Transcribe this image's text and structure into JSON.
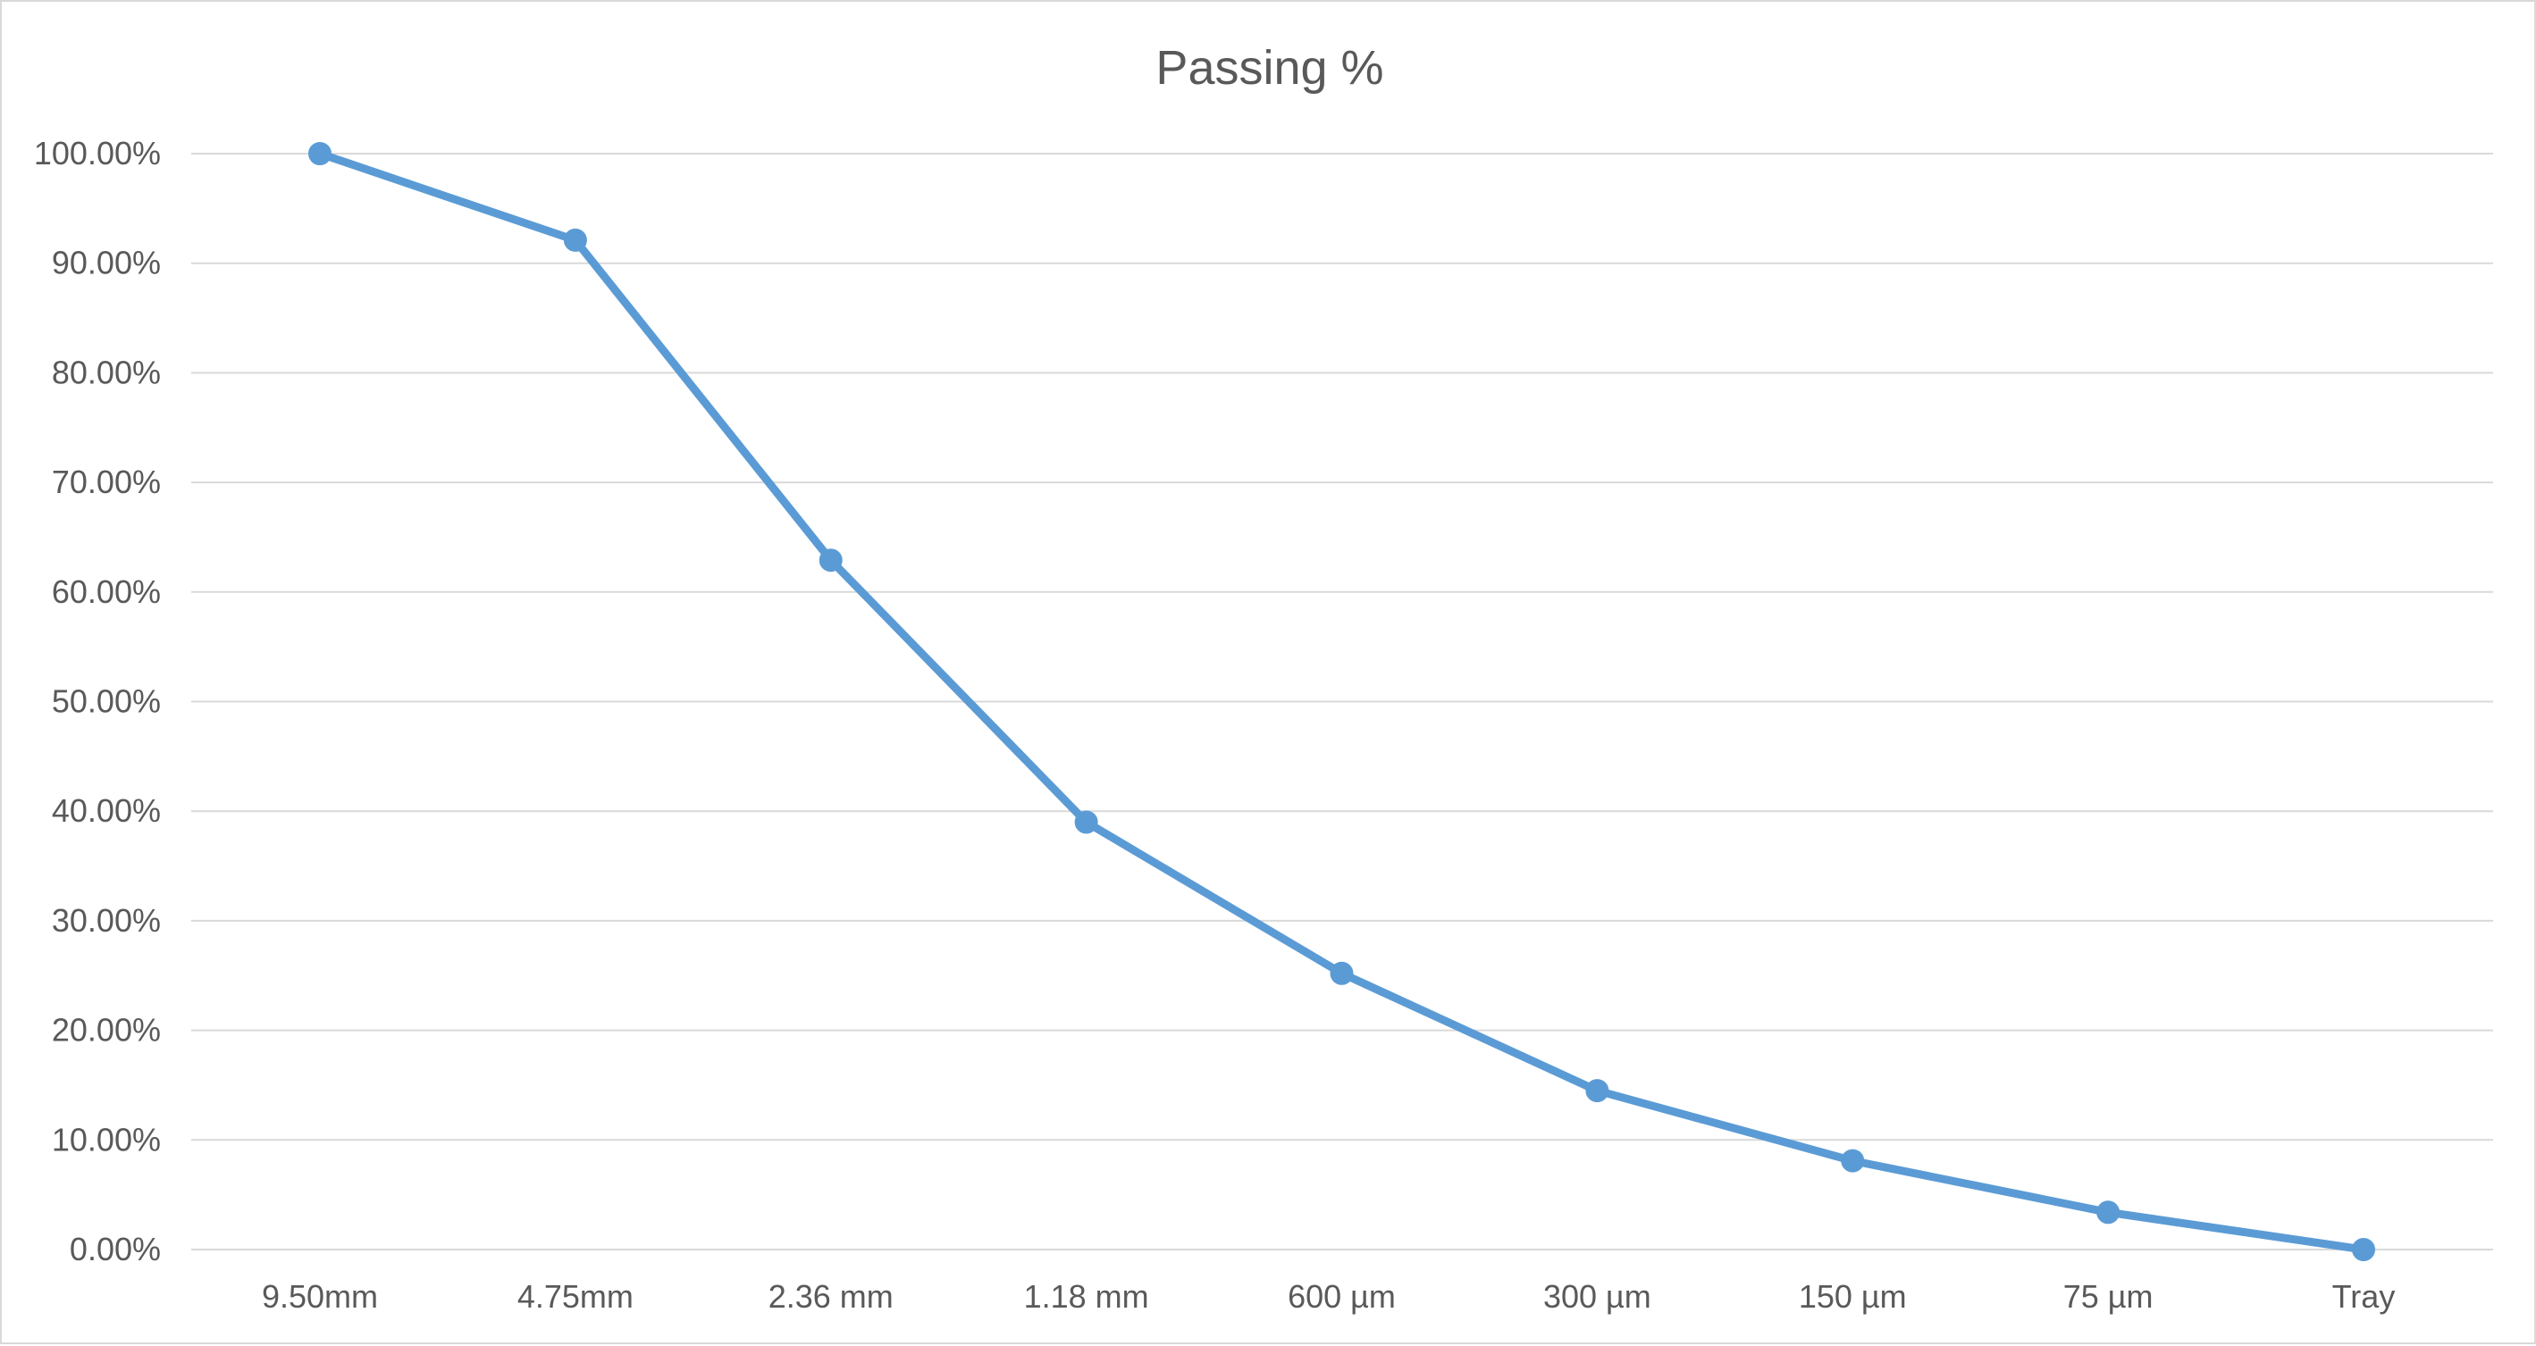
{
  "chart_data": {
    "type": "line",
    "title": "Passing %",
    "xlabel": "",
    "ylabel": "",
    "categories": [
      "9.50mm",
      "4.75mm",
      "2.36 mm",
      "1.18 mm",
      "600 µm",
      "300 µm",
      "150 µm",
      "75 µm",
      "Tray"
    ],
    "series": [
      {
        "values": [
          100.0,
          92.1,
          62.9,
          39.0,
          25.2,
          14.5,
          8.1,
          3.4,
          0.0
        ]
      }
    ],
    "ylim": [
      0,
      100
    ],
    "yticks": [
      0,
      10,
      20,
      30,
      40,
      50,
      60,
      70,
      80,
      90,
      100
    ],
    "ytick_labels": [
      "0.00%",
      "10.00%",
      "20.00%",
      "30.00%",
      "40.00%",
      "50.00%",
      "60.00%",
      "70.00%",
      "80.00%",
      "90.00%",
      "100.00%"
    ],
    "grid": "horizontal",
    "legend": "none",
    "colors": {
      "series": "#5b9bd5",
      "grid": "#d9d9d9",
      "text": "#595959"
    }
  }
}
